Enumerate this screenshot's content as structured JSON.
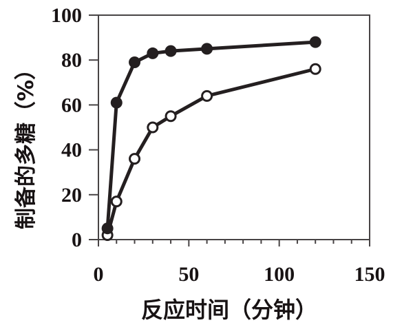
{
  "figure": {
    "background": "#ffffff",
    "ink_color": "#241f20",
    "frame_color": "#474344"
  },
  "chart_data": {
    "type": "line",
    "title": "",
    "xlabel": "反应时间（分钟）",
    "ylabel": "制备的多糖（%）",
    "xlim": [
      0,
      150
    ],
    "ylim": [
      0,
      100
    ],
    "xticks_major": [
      0,
      50,
      100,
      150
    ],
    "xtick_minor_step": 10,
    "yticks_major": [
      0,
      20,
      40,
      60,
      80,
      100
    ],
    "grid": false,
    "legend": "none",
    "x": [
      5,
      10,
      20,
      30,
      40,
      60,
      120
    ],
    "series": [
      {
        "name": "solid-circle-series",
        "marker": "filled-circle",
        "color": "#241f20",
        "values": [
          5,
          61,
          79,
          83,
          84,
          85,
          88
        ]
      },
      {
        "name": "open-circle-series",
        "marker": "open-circle",
        "color": "#241f20",
        "marker_fill": "#ffffff",
        "values": [
          2,
          17,
          36,
          50,
          55,
          64,
          76
        ]
      }
    ]
  }
}
